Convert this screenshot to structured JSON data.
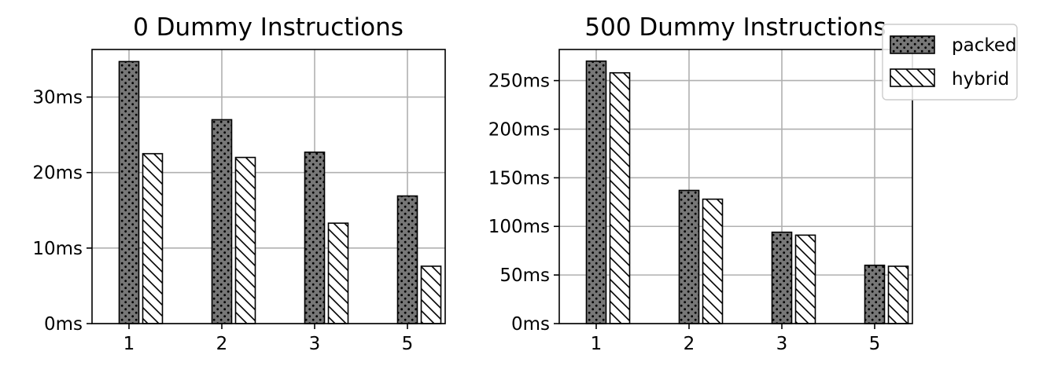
{
  "chart_data": [
    {
      "type": "bar",
      "title": "0 Dummy Instructions",
      "xlabel": "",
      "ylabel": "",
      "categories": [
        "1",
        "2",
        "3",
        "5"
      ],
      "ylim": [
        0,
        36.3
      ],
      "yticks": [
        0,
        10,
        20,
        30
      ],
      "ytick_labels": [
        "0ms",
        "10ms",
        "20ms",
        "30ms"
      ],
      "grid": true,
      "series": [
        {
          "name": "packed",
          "values": [
            34.7,
            27.0,
            22.7,
            16.9
          ]
        },
        {
          "name": "hybrid",
          "values": [
            22.5,
            22.0,
            13.3,
            7.6
          ]
        }
      ]
    },
    {
      "type": "bar",
      "title": "500 Dummy Instructions",
      "xlabel": "",
      "ylabel": "",
      "categories": [
        "1",
        "2",
        "3",
        "5"
      ],
      "ylim": [
        0,
        282
      ],
      "yticks": [
        0,
        50,
        100,
        150,
        200,
        250
      ],
      "ytick_labels": [
        "0ms",
        "50ms",
        "100ms",
        "150ms",
        "200ms",
        "250ms"
      ],
      "grid": true,
      "series": [
        {
          "name": "packed",
          "values": [
            270,
            137,
            94,
            60
          ]
        },
        {
          "name": "hybrid",
          "values": [
            258,
            128,
            91,
            59
          ]
        }
      ]
    }
  ],
  "legend": {
    "placement": "top-right",
    "entries": [
      "packed",
      "hybrid"
    ]
  },
  "colors": {
    "packed_fill": "#777777",
    "hybrid_fill": "#ffffff",
    "edge": "#000000",
    "grid": "#b0b0b0"
  }
}
